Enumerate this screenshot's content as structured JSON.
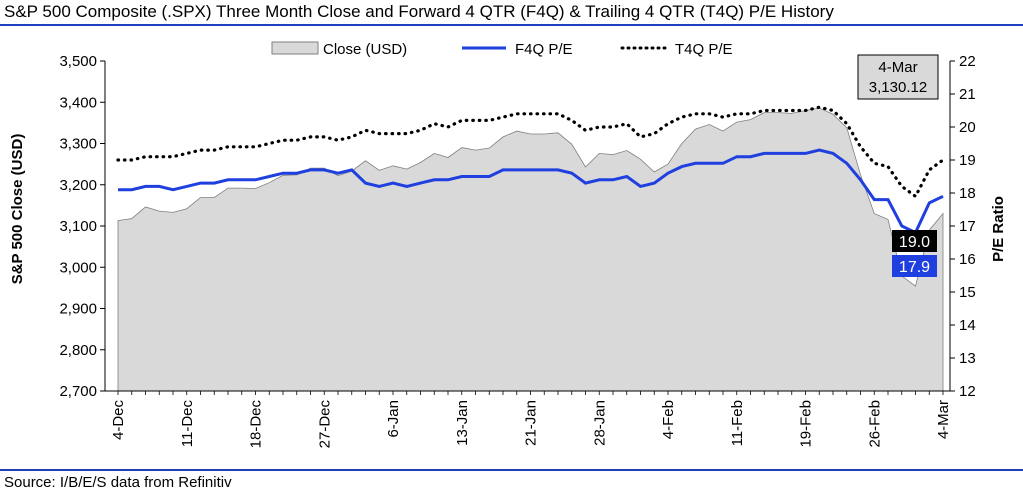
{
  "page": {
    "title": "S&P 500 Composite (.SPX) Three Month Close and Forward 4 QTR (F4Q) & Trailing 4 QTR (T4Q) P/E History",
    "source": "Source: I/B/E/S data from Refinitiv"
  },
  "colors": {
    "rule": "#1f3fbf",
    "close_fill": "#d9d9d9",
    "close_stroke": "#7f7f7f",
    "f4q": "#1f3fdf",
    "t4q": "#000000",
    "callout_fill": "#d9d9d9"
  },
  "chart_data": {
    "type": "line",
    "left_axis": {
      "label": "S&P 500 Close (USD)",
      "min": 2700,
      "max": 3500,
      "ticks": [
        "2,700",
        "2,800",
        "2,900",
        "3,000",
        "3,100",
        "3,200",
        "3,300",
        "3,400",
        "3,500"
      ]
    },
    "right_axis": {
      "label": "P/E Ratio",
      "min": 12,
      "max": 22,
      "ticks": [
        "12",
        "13",
        "14",
        "15",
        "16",
        "17",
        "18",
        "19",
        "20",
        "21",
        "22"
      ]
    },
    "x_tick_labels": [
      "4-Dec",
      "11-Dec",
      "18-Dec",
      "27-Dec",
      "6-Jan",
      "13-Jan",
      "21-Jan",
      "28-Jan",
      "4-Feb",
      "11-Feb",
      "19-Feb",
      "26-Feb",
      "4-Mar"
    ],
    "x_tick_positions": [
      0,
      5,
      10,
      15,
      20,
      25,
      30,
      35,
      40,
      45,
      50,
      55,
      60
    ],
    "legend": [
      "Close (USD)",
      "F4Q P/E",
      "T4Q P/E"
    ],
    "series": [
      {
        "name": "Close (USD)",
        "axis": "left",
        "values": [
          3113,
          3118,
          3146,
          3136,
          3133,
          3142,
          3169,
          3169,
          3192,
          3192,
          3191,
          3205,
          3223,
          3224,
          3240,
          3240,
          3222,
          3233,
          3258,
          3235,
          3246,
          3238,
          3254,
          3276,
          3266,
          3290,
          3284,
          3289,
          3316,
          3330,
          3323,
          3323,
          3326,
          3298,
          3243,
          3276,
          3273,
          3283,
          3262,
          3231,
          3250,
          3300,
          3335,
          3346,
          3330,
          3352,
          3358,
          3375,
          3375,
          3373,
          3380,
          3386,
          3371,
          3338,
          3224,
          3130,
          3116,
          2979,
          2954,
          3090,
          3130
        ]
      },
      {
        "name": "F4Q P/E",
        "axis": "right",
        "values": [
          18.1,
          18.1,
          18.2,
          18.2,
          18.1,
          18.2,
          18.3,
          18.3,
          18.4,
          18.4,
          18.4,
          18.5,
          18.6,
          18.6,
          18.7,
          18.7,
          18.6,
          18.7,
          18.3,
          18.2,
          18.3,
          18.2,
          18.3,
          18.4,
          18.4,
          18.5,
          18.5,
          18.5,
          18.7,
          18.7,
          18.7,
          18.7,
          18.7,
          18.6,
          18.3,
          18.4,
          18.4,
          18.5,
          18.2,
          18.3,
          18.6,
          18.8,
          18.9,
          18.9,
          18.9,
          19.1,
          19.1,
          19.2,
          19.2,
          19.2,
          19.2,
          19.3,
          19.2,
          18.9,
          18.4,
          17.8,
          17.8,
          17.0,
          16.8,
          17.7,
          17.9
        ]
      },
      {
        "name": "T4Q P/E",
        "axis": "right",
        "values": [
          19.0,
          19.0,
          19.1,
          19.1,
          19.1,
          19.2,
          19.3,
          19.3,
          19.4,
          19.4,
          19.4,
          19.5,
          19.6,
          19.6,
          19.7,
          19.7,
          19.6,
          19.7,
          19.9,
          19.8,
          19.8,
          19.8,
          19.9,
          20.1,
          20.0,
          20.2,
          20.2,
          20.2,
          20.3,
          20.4,
          20.4,
          20.4,
          20.4,
          20.2,
          19.9,
          20.0,
          20.0,
          20.1,
          19.7,
          19.8,
          20.1,
          20.3,
          20.4,
          20.4,
          20.3,
          20.4,
          20.4,
          20.5,
          20.5,
          20.5,
          20.5,
          20.6,
          20.5,
          20.1,
          19.4,
          18.9,
          18.8,
          18.2,
          17.9,
          18.7,
          19.0
        ]
      }
    ],
    "callout": {
      "date": "4-Mar",
      "value": "3,130.12"
    },
    "end_labels": {
      "t4q": "19.0",
      "f4q": "17.9"
    }
  }
}
